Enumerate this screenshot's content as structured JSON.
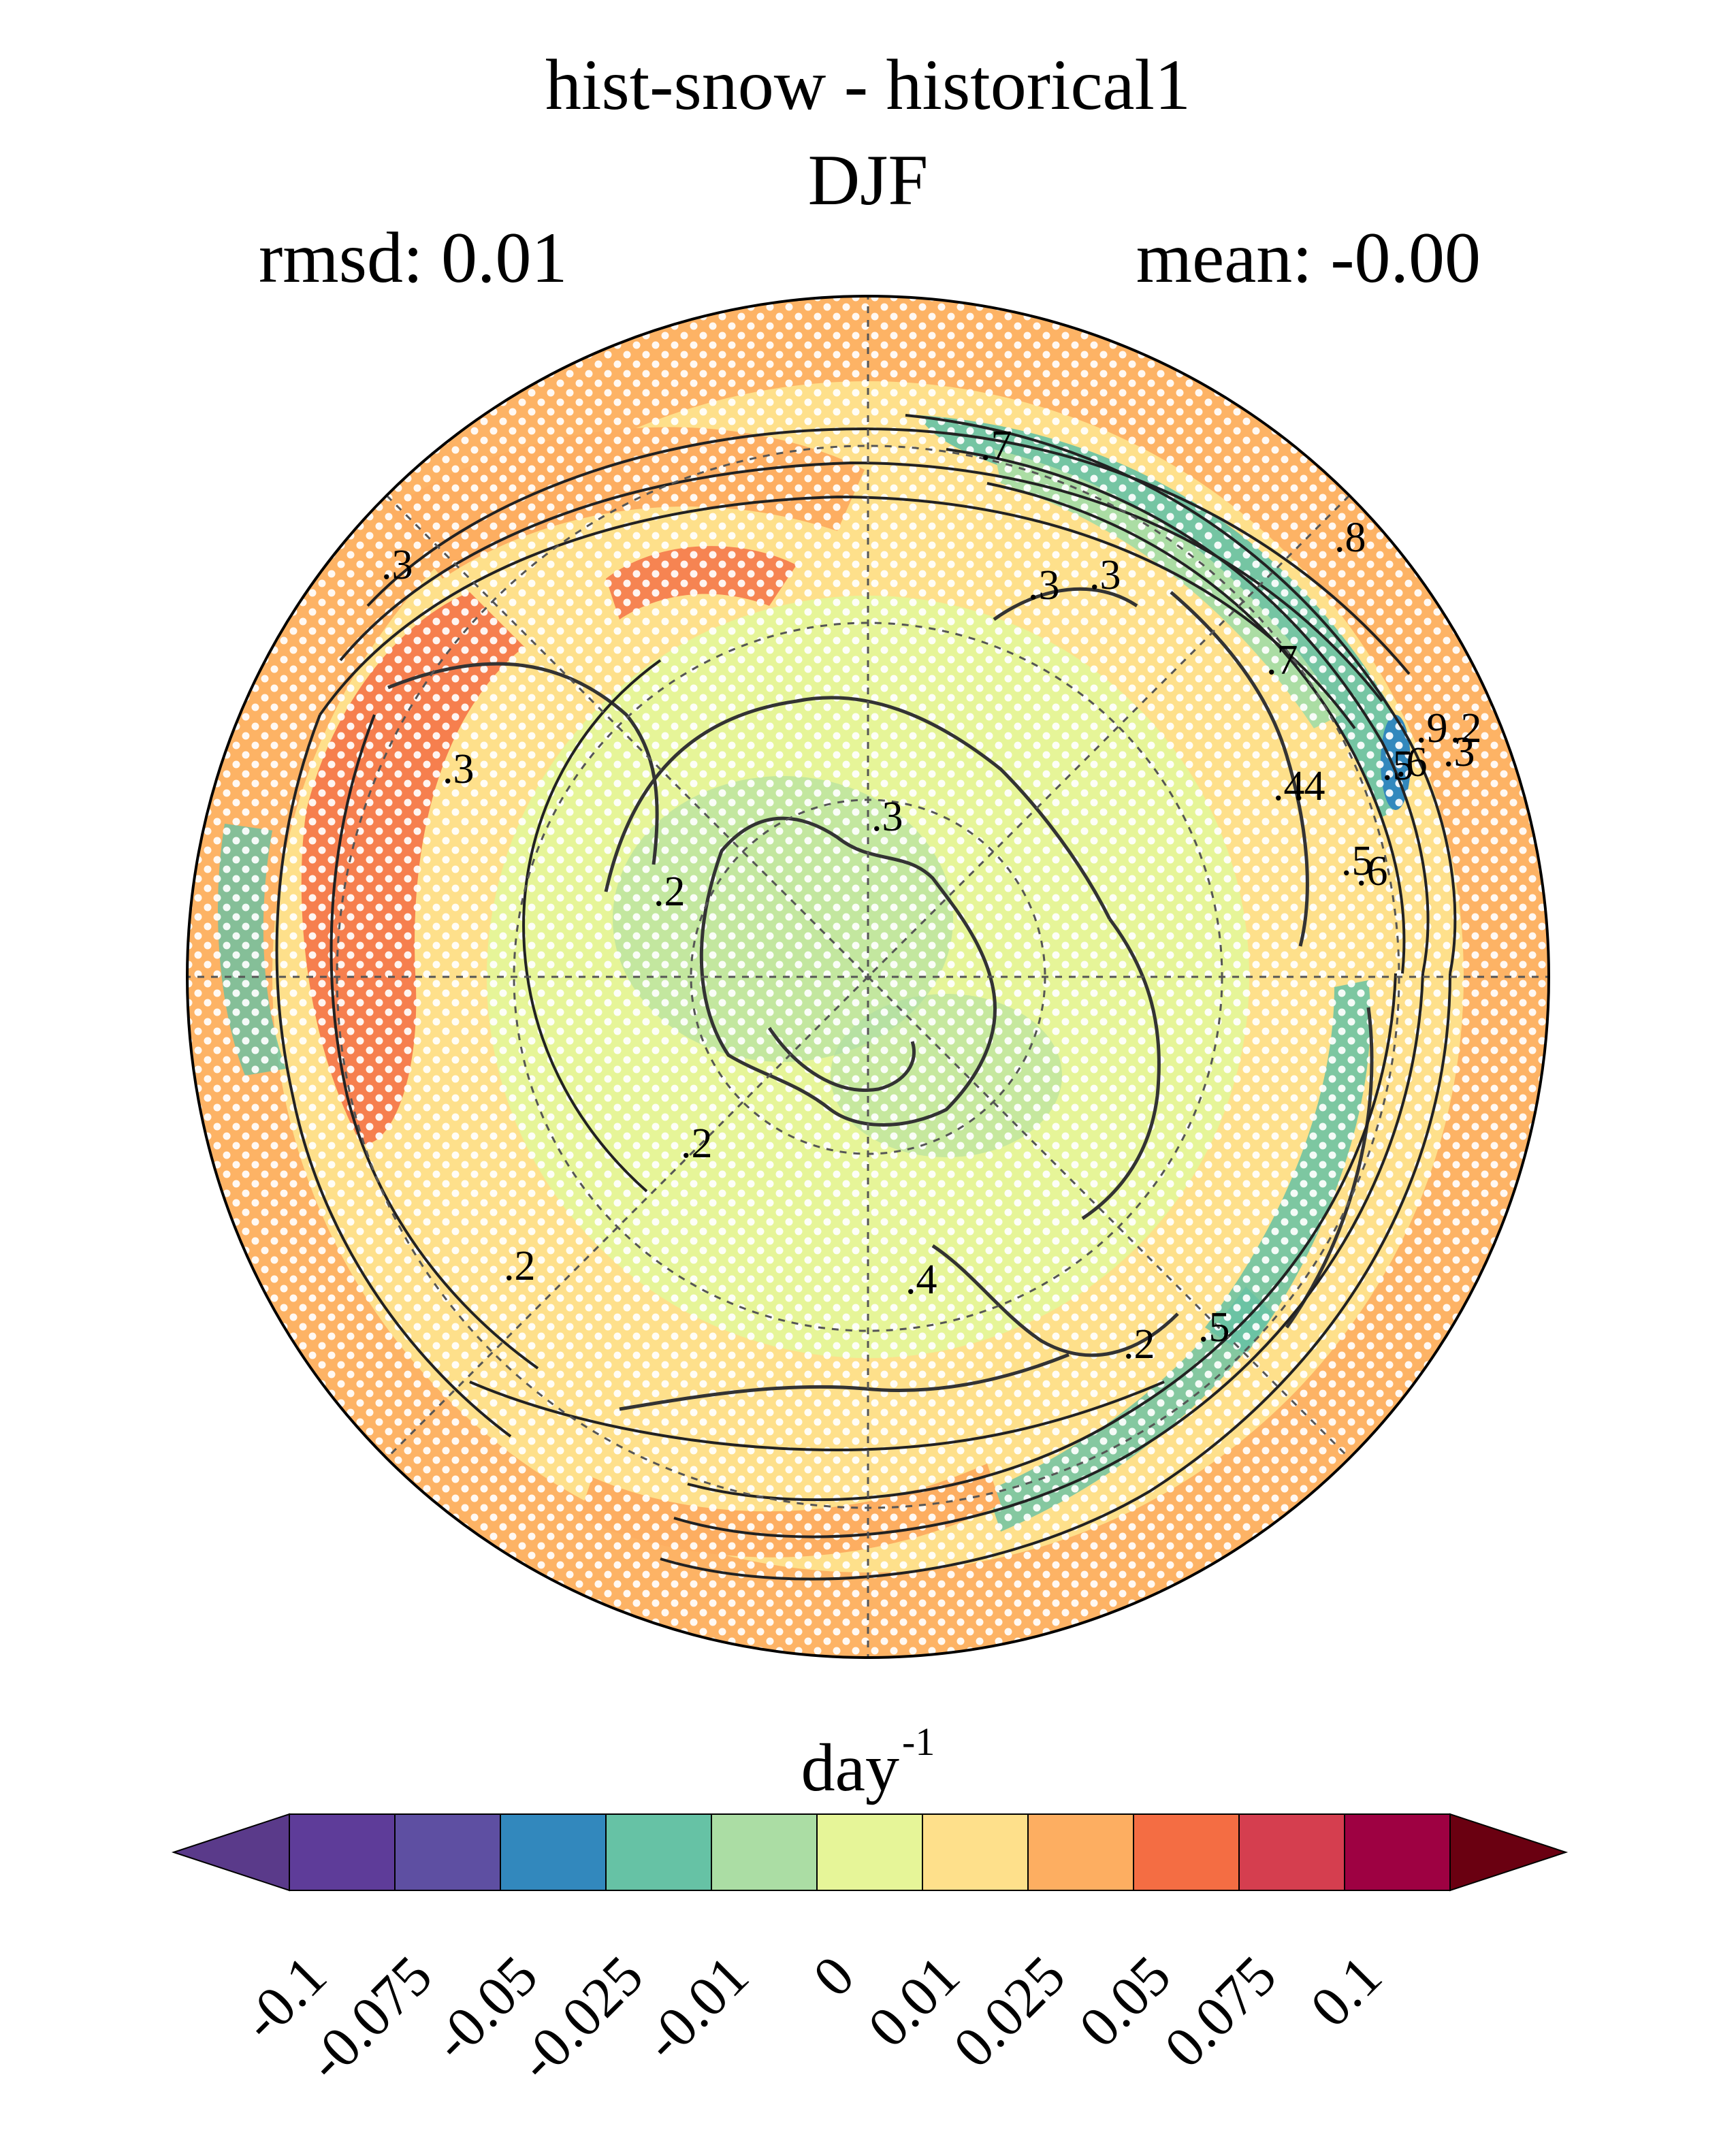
{
  "title": "hist-snow - historical1",
  "season": "DJF",
  "stats": {
    "rmsd": "rmsd: 0.01",
    "mean": "mean: -0.00"
  },
  "contour_labels": [
    ".7",
    ".3",
    ".3",
    ".3",
    ".3",
    ".3",
    ".2",
    ".2",
    ".2",
    ".4",
    ".4",
    ".5",
    ".5",
    ".6",
    ".6",
    ".7",
    ".8",
    ".9",
    ".2",
    ".3",
    ".2",
    ".4",
    ".5"
  ],
  "colorbar": {
    "unit": "day",
    "unit_exp": "-1",
    "ticks": [
      "-0.1",
      "-0.075",
      "-0.05",
      "-0.025",
      "-0.01",
      "0",
      "0.01",
      "0.025",
      "0.05",
      "0.075",
      "0.1"
    ],
    "colors": [
      "#5e3c99",
      "#5e4fa2",
      "#3288bd",
      "#66c2a5",
      "#abdda4",
      "#e6f598",
      "#fee08b",
      "#fdae61",
      "#f46d43",
      "#d53e4f",
      "#9e0142"
    ],
    "under_color": "#5a3a8a",
    "over_color": "#6a0011"
  },
  "map_colors": {
    "ocean_warm": "#fdae61",
    "mid": "#fee08b",
    "neutral": "#e6f598",
    "cool": "#abdda4",
    "cold": "#66c2a5",
    "coldest": "#3288bd",
    "hot": "#f46d43"
  }
}
